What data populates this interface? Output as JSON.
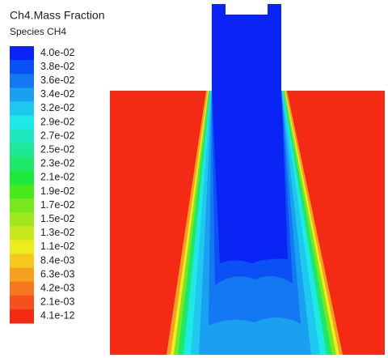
{
  "legend": {
    "title": "Ch4.Mass Fraction",
    "subtitle": "Species CH4",
    "levels": [
      {
        "label": "4.0e-02",
        "color": "#0a24f5"
      },
      {
        "label": "3.8e-02",
        "color": "#0a50f5"
      },
      {
        "label": "3.6e-02",
        "color": "#1378f2"
      },
      {
        "label": "3.4e-02",
        "color": "#1aa0f0"
      },
      {
        "label": "3.2e-02",
        "color": "#1ec8ee"
      },
      {
        "label": "2.9e-02",
        "color": "#1ee8e8"
      },
      {
        "label": "2.7e-02",
        "color": "#1ee8c0"
      },
      {
        "label": "2.5e-02",
        "color": "#1ee896"
      },
      {
        "label": "2.3e-02",
        "color": "#1ee86a"
      },
      {
        "label": "2.1e-02",
        "color": "#1ee83c"
      },
      {
        "label": "1.9e-02",
        "color": "#46e81e"
      },
      {
        "label": "1.7e-02",
        "color": "#78e81e"
      },
      {
        "label": "1.5e-02",
        "color": "#a0e81e"
      },
      {
        "label": "1.3e-02",
        "color": "#c8e81e"
      },
      {
        "label": "1.1e-02",
        "color": "#ecec1e"
      },
      {
        "label": "8.4e-03",
        "color": "#f5c81e"
      },
      {
        "label": "6.3e-03",
        "color": "#f5a01e"
      },
      {
        "label": "4.2e-03",
        "color": "#f5781e"
      },
      {
        "label": "2.1e-03",
        "color": "#f5501e"
      },
      {
        "label": "4.1e-12",
        "color": "#f52a14"
      }
    ]
  }
}
